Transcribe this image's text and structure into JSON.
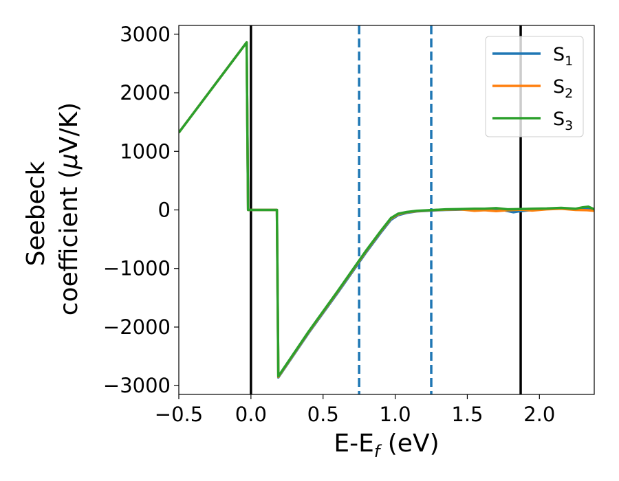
{
  "chart_data": {
    "type": "line",
    "xlabel": "E-E_f (eV)",
    "ylabel_line1": "Seebeck",
    "ylabel_line2": "coefficient  (μV/K)",
    "xlim": [
      -0.5,
      2.38
    ],
    "ylim": [
      -3150,
      3150
    ],
    "xticks": [
      -0.5,
      0.0,
      0.5,
      1.0,
      1.5,
      2.0
    ],
    "xtick_labels": [
      "−0.5",
      "0.0",
      "0.5",
      "1.0",
      "1.5",
      "2.0"
    ],
    "yticks": [
      -3000,
      -2000,
      -1000,
      0,
      1000,
      2000,
      3000
    ],
    "ytick_labels": [
      "−3000",
      "−2000",
      "−1000",
      "0",
      "1000",
      "2000",
      "3000"
    ],
    "grid": false,
    "legend_position": "top-right",
    "vlines": [
      {
        "x": 0.0,
        "color": "#000000",
        "style": "solid"
      },
      {
        "x": 1.87,
        "color": "#000000",
        "style": "solid"
      },
      {
        "x": 0.75,
        "color": "#1f77b4",
        "style": "dashed"
      },
      {
        "x": 1.25,
        "color": "#1f77b4",
        "style": "dashed"
      }
    ],
    "series": [
      {
        "name": "S1",
        "legend_base": "S",
        "legend_sub": "1",
        "color": "#1f77b4",
        "x": [
          -0.5,
          -0.03,
          -0.02,
          0.18,
          0.19,
          0.4,
          0.6,
          0.8,
          0.9,
          0.97,
          1.02,
          1.08,
          1.15,
          1.25,
          1.35,
          1.45,
          1.55,
          1.62,
          1.7,
          1.78,
          1.82,
          1.87,
          1.95,
          2.05,
          2.15,
          2.25,
          2.33,
          2.38
        ],
        "y": [
          1320,
          2860,
          0,
          0,
          -2860,
          -2100,
          -1420,
          -720,
          -390,
          -170,
          -90,
          -50,
          -25,
          -10,
          0,
          5,
          10,
          15,
          20,
          -20,
          -40,
          -20,
          0,
          15,
          25,
          10,
          20,
          0
        ]
      },
      {
        "name": "S2",
        "legend_base": "S",
        "legend_sub": "2",
        "color": "#ff7f0e",
        "x": [
          -0.5,
          -0.03,
          -0.02,
          0.18,
          0.19,
          0.4,
          0.6,
          0.8,
          0.9,
          0.97,
          1.02,
          1.08,
          1.15,
          1.25,
          1.35,
          1.45,
          1.55,
          1.62,
          1.7,
          1.78,
          1.87,
          1.95,
          2.05,
          2.15,
          2.25,
          2.33,
          2.38
        ],
        "y": [
          1320,
          2860,
          0,
          0,
          -2850,
          -2085,
          -1400,
          -700,
          -370,
          -150,
          -75,
          -40,
          -20,
          -5,
          5,
          10,
          -15,
          -5,
          -20,
          -5,
          5,
          -10,
          10,
          20,
          0,
          -5,
          -15
        ]
      },
      {
        "name": "S3",
        "legend_base": "S",
        "legend_sub": "3",
        "color": "#2ca02c",
        "x": [
          -0.5,
          -0.03,
          -0.02,
          0.18,
          0.19,
          0.4,
          0.6,
          0.8,
          0.9,
          0.97,
          1.02,
          1.08,
          1.15,
          1.25,
          1.35,
          1.45,
          1.55,
          1.62,
          1.7,
          1.78,
          1.87,
          1.95,
          2.05,
          2.15,
          2.25,
          2.3,
          2.34,
          2.38
        ],
        "y": [
          1320,
          2860,
          0,
          0,
          -2840,
          -2075,
          -1390,
          -690,
          -360,
          -140,
          -65,
          -35,
          -15,
          -3,
          10,
          15,
          20,
          20,
          30,
          10,
          15,
          20,
          25,
          35,
          20,
          45,
          55,
          10
        ]
      }
    ]
  }
}
